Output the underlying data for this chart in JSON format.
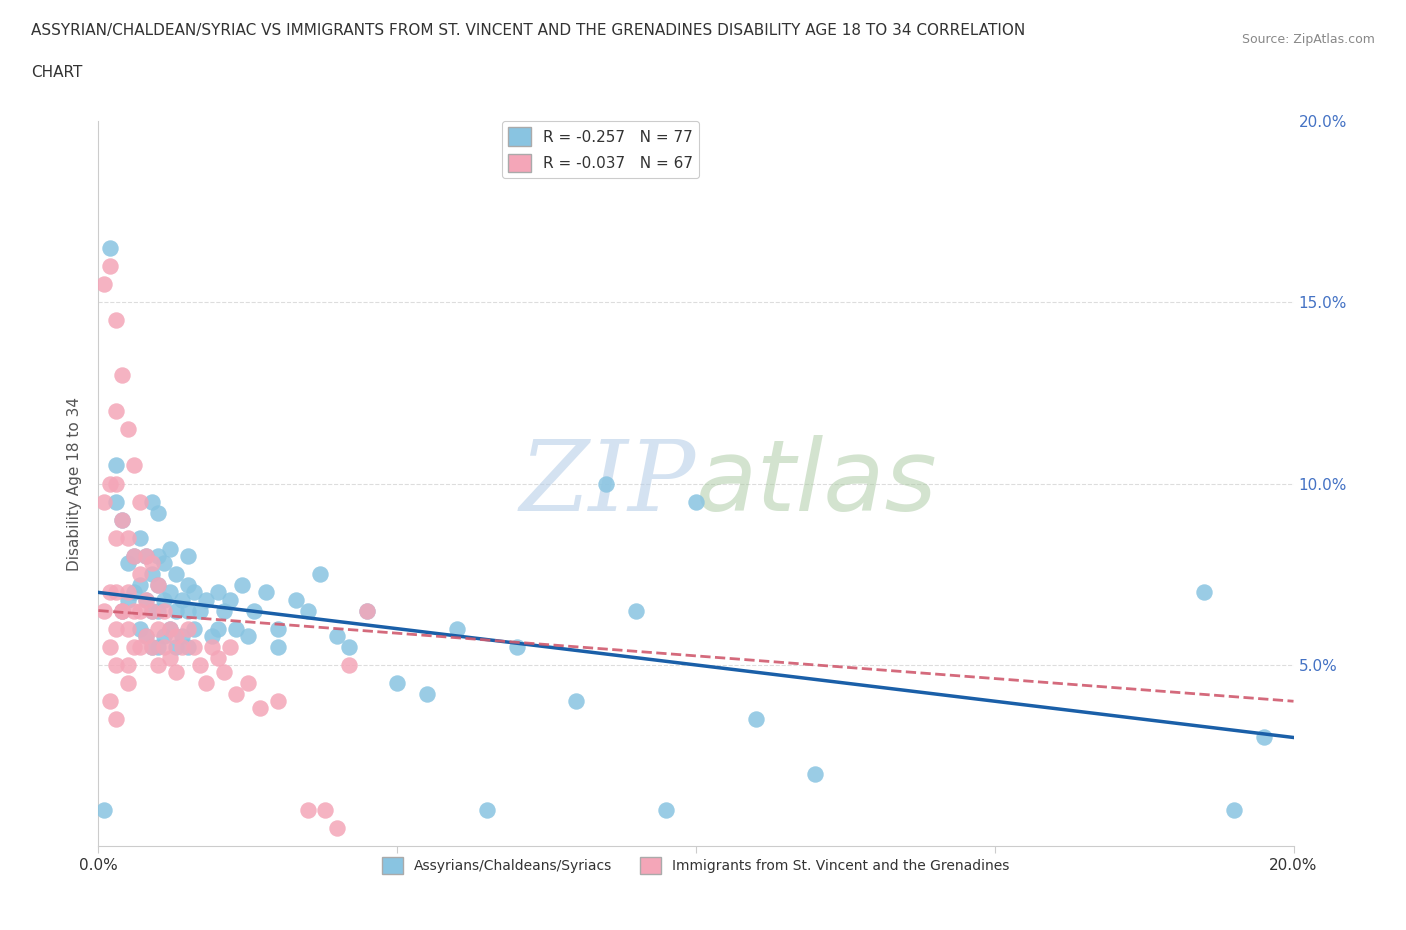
{
  "title_line1": "ASSYRIAN/CHALDEAN/SYRIAC VS IMMIGRANTS FROM ST. VINCENT AND THE GRENADINES DISABILITY AGE 18 TO 34 CORRELATION",
  "title_line2": "CHART",
  "source": "Source: ZipAtlas.com",
  "ylabel": "Disability Age 18 to 34",
  "xlim": [
    0.0,
    0.2
  ],
  "ylim": [
    0.0,
    0.2
  ],
  "xtick_positions": [
    0.0,
    0.05,
    0.1,
    0.15,
    0.2
  ],
  "xtick_labels": [
    "0.0%",
    "",
    "",
    "",
    "20.0%"
  ],
  "ytick_positions": [
    0.0,
    0.05,
    0.1,
    0.15,
    0.2
  ],
  "ytick_labels_right": [
    "",
    "5.0%",
    "10.0%",
    "15.0%",
    "20.0%"
  ],
  "legend_r1": "R = -0.257",
  "legend_n1": "N = 77",
  "legend_r2": "R = -0.037",
  "legend_n2": "N = 67",
  "blue_color": "#89c4e1",
  "pink_color": "#f4a6b8",
  "blue_line_color": "#1a5fa8",
  "pink_line_color": "#d05a6e",
  "watermark_zip": "ZIP",
  "watermark_atlas": "atlas",
  "label1": "Assyrians/Chaldeans/Syriacs",
  "label2": "Immigrants from St. Vincent and the Grenadines",
  "grid_color": "#dddddd",
  "background_color": "#ffffff",
  "right_ytick_color": "#4472c4",
  "blue_x": [
    0.001,
    0.002,
    0.003,
    0.003,
    0.004,
    0.004,
    0.005,
    0.005,
    0.006,
    0.006,
    0.007,
    0.007,
    0.007,
    0.008,
    0.008,
    0.008,
    0.009,
    0.009,
    0.009,
    0.009,
    0.01,
    0.01,
    0.01,
    0.01,
    0.01,
    0.011,
    0.011,
    0.011,
    0.012,
    0.012,
    0.012,
    0.013,
    0.013,
    0.013,
    0.014,
    0.014,
    0.015,
    0.015,
    0.015,
    0.015,
    0.016,
    0.016,
    0.017,
    0.018,
    0.019,
    0.02,
    0.02,
    0.021,
    0.022,
    0.023,
    0.024,
    0.025,
    0.026,
    0.028,
    0.03,
    0.03,
    0.033,
    0.035,
    0.037,
    0.04,
    0.042,
    0.045,
    0.05,
    0.055,
    0.06,
    0.065,
    0.07,
    0.08,
    0.085,
    0.09,
    0.095,
    0.1,
    0.11,
    0.12,
    0.185,
    0.19,
    0.195
  ],
  "blue_y": [
    0.01,
    0.165,
    0.095,
    0.105,
    0.065,
    0.09,
    0.068,
    0.078,
    0.07,
    0.08,
    0.06,
    0.072,
    0.085,
    0.058,
    0.068,
    0.08,
    0.055,
    0.065,
    0.075,
    0.095,
    0.055,
    0.065,
    0.072,
    0.08,
    0.092,
    0.058,
    0.068,
    0.078,
    0.06,
    0.07,
    0.082,
    0.055,
    0.065,
    0.075,
    0.058,
    0.068,
    0.055,
    0.065,
    0.072,
    0.08,
    0.06,
    0.07,
    0.065,
    0.068,
    0.058,
    0.06,
    0.07,
    0.065,
    0.068,
    0.06,
    0.072,
    0.058,
    0.065,
    0.07,
    0.06,
    0.055,
    0.068,
    0.065,
    0.075,
    0.058,
    0.055,
    0.065,
    0.045,
    0.042,
    0.06,
    0.01,
    0.055,
    0.04,
    0.1,
    0.065,
    0.01,
    0.095,
    0.035,
    0.02,
    0.07,
    0.01,
    0.03
  ],
  "pink_x": [
    0.001,
    0.001,
    0.001,
    0.002,
    0.002,
    0.002,
    0.002,
    0.003,
    0.003,
    0.003,
    0.003,
    0.003,
    0.004,
    0.004,
    0.004,
    0.005,
    0.005,
    0.005,
    0.005,
    0.005,
    0.006,
    0.006,
    0.006,
    0.006,
    0.007,
    0.007,
    0.007,
    0.007,
    0.008,
    0.008,
    0.008,
    0.009,
    0.009,
    0.009,
    0.01,
    0.01,
    0.01,
    0.011,
    0.011,
    0.012,
    0.012,
    0.013,
    0.013,
    0.014,
    0.015,
    0.016,
    0.017,
    0.018,
    0.019,
    0.02,
    0.021,
    0.022,
    0.023,
    0.025,
    0.027,
    0.03,
    0.035,
    0.038,
    0.04,
    0.042,
    0.045,
    0.002,
    0.003,
    0.004,
    0.005,
    0.003,
    0.003
  ],
  "pink_y": [
    0.155,
    0.095,
    0.065,
    0.16,
    0.1,
    0.07,
    0.055,
    0.145,
    0.085,
    0.07,
    0.06,
    0.05,
    0.13,
    0.09,
    0.065,
    0.115,
    0.085,
    0.07,
    0.06,
    0.045,
    0.105,
    0.08,
    0.065,
    0.055,
    0.095,
    0.075,
    0.065,
    0.055,
    0.08,
    0.068,
    0.058,
    0.078,
    0.065,
    0.055,
    0.072,
    0.06,
    0.05,
    0.065,
    0.055,
    0.06,
    0.052,
    0.058,
    0.048,
    0.055,
    0.06,
    0.055,
    0.05,
    0.045,
    0.055,
    0.052,
    0.048,
    0.055,
    0.042,
    0.045,
    0.038,
    0.04,
    0.01,
    0.01,
    0.005,
    0.05,
    0.065,
    0.04,
    0.035,
    0.065,
    0.05,
    0.12,
    0.1
  ]
}
